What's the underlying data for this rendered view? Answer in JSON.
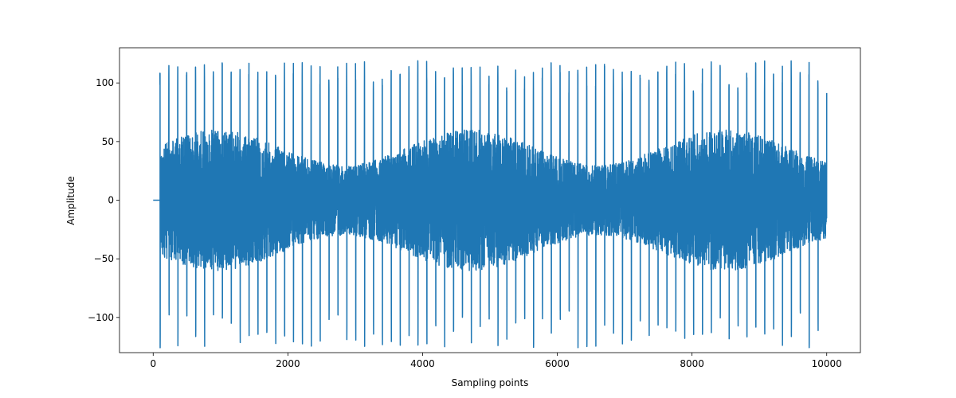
{
  "chart_data": {
    "type": "line",
    "title": "",
    "xlabel": "Sampling points",
    "ylabel": "Amplitude",
    "xlim": [
      -500,
      10500
    ],
    "ylim": [
      -130,
      130
    ],
    "x_ticks": [
      0,
      2000,
      4000,
      6000,
      8000,
      10000
    ],
    "x_tick_labels": [
      "0",
      "2000",
      "4000",
      "6000",
      "8000",
      "10000"
    ],
    "y_ticks": [
      -100,
      -50,
      0,
      50,
      100
    ],
    "y_tick_labels": [
      "−100",
      "−50",
      "0",
      "50",
      "100"
    ],
    "grid": false,
    "series": [
      {
        "color": "#1f77b4",
        "x_start": 0,
        "x_end": 10000,
        "flat_until": 100,
        "periodic_peak_count": 75,
        "max": 119,
        "min": -126
      }
    ]
  }
}
